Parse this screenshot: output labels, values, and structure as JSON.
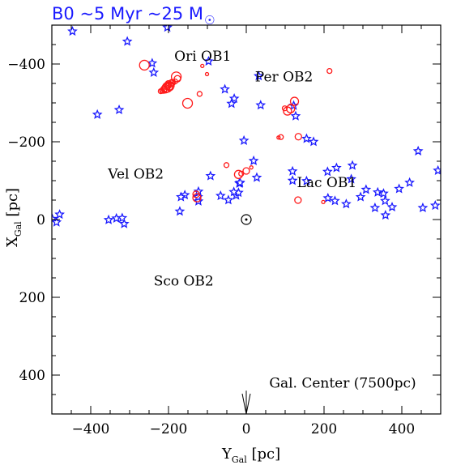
{
  "chart_data": {
    "type": "scatter",
    "title": {
      "main": "B0   ~5 Myr ~25 M",
      "sun_symbol": "☉"
    },
    "xlabel": {
      "main": "Y",
      "sub": "Gal",
      "unit": " [pc]"
    },
    "ylabel": {
      "main": "X",
      "sub": "Gal",
      "unit": " [pc]"
    },
    "xlim": [
      -500,
      500
    ],
    "ylim": [
      500,
      -500
    ],
    "xticks": [
      -400,
      -200,
      0,
      200,
      400
    ],
    "xtick_labels": [
      "−400",
      "−200",
      "0",
      "200",
      "400"
    ],
    "yticks": [
      -400,
      -200,
      0,
      200,
      400
    ],
    "ytick_labels": [
      "−400",
      "−200",
      "0",
      "200",
      "400"
    ],
    "grid": false,
    "colors": {
      "stars": "#1a1aff",
      "circles": "#ff1a1a",
      "title": "#1a1aff",
      "axes": "#000000"
    },
    "sun": {
      "x": 0,
      "y": 0
    },
    "annotations": [
      {
        "text": "Ori OB1",
        "x": -112,
        "y": -408
      },
      {
        "text": "Per OB2",
        "x": 97,
        "y": -355
      },
      {
        "text": "Vel OB2",
        "x": -284,
        "y": -105
      },
      {
        "text": "Lac OB1",
        "x": 207,
        "y": -83
      },
      {
        "text": "Sco OB2",
        "x": -161,
        "y": 170
      },
      {
        "text": "Gal. Center (7500pc)",
        "x": 248,
        "y": 432
      }
    ],
    "gal_center_arrow": {
      "x": 0,
      "y_from": 440,
      "y_to": 500
    },
    "series": [
      {
        "marker": "star",
        "x": [
          -447,
          -306,
          -203,
          -242,
          -238,
          -97,
          -55,
          -31,
          -38,
          -383,
          -327,
          32,
          37,
          122,
          127,
          155,
          173,
          273,
          232,
          209,
          270,
          155,
          308,
          294,
          210,
          228,
          257,
          331,
          358,
          442,
          493,
          512,
          393,
          420,
          338,
          353,
          357,
          375,
          454,
          486,
          -480,
          -499,
          -488,
          -314,
          -354,
          -334,
          -319,
          -171,
          -158,
          -168,
          -123,
          -124,
          -123,
          -66,
          -26,
          -46,
          -20,
          -32,
          -18,
          -17,
          -16,
          27,
          -92,
          119,
          119,
          19,
          -6
        ],
        "y": [
          -484,
          -458,
          -494,
          -402,
          -378,
          -407,
          -335,
          -311,
          -298,
          -270,
          -282,
          -369,
          -294,
          -293,
          -266,
          -208,
          -200,
          -139,
          -133,
          -123,
          -104,
          -99,
          -77,
          -58,
          -55,
          -48,
          -40,
          -30,
          -11,
          -176,
          -126,
          -162,
          -79,
          -95,
          -70,
          -67,
          -48,
          -32,
          -30,
          -36,
          -13,
          -2,
          7,
          11,
          1,
          -3,
          -4,
          -21,
          -63,
          -58,
          -47,
          -58,
          -72,
          -61,
          -62,
          -50,
          -69,
          -71,
          -93,
          -93,
          -95,
          -108,
          -112,
          -100,
          -124,
          -151,
          -203
        ]
      },
      {
        "marker": "circle",
        "x": [
          -262,
          -180,
          -177,
          -193,
          -196,
          -203,
          -208,
          -213,
          -220,
          -151,
          -120,
          -101,
          124,
          114,
          106,
          99,
          89,
          83,
          13,
          -210,
          -216,
          -203,
          -197,
          -200,
          -191,
          -183,
          -202,
          -129,
          -127,
          -51,
          -20,
          -13,
          0,
          133,
          198,
          214,
          134,
          -113
        ],
        "y": [
          -397,
          -367,
          -362,
          -350,
          -344,
          -340,
          -336,
          -333,
          -330,
          -299,
          -323,
          -374,
          -304,
          -285,
          -279,
          -286,
          -212,
          -211,
          -134,
          -335,
          -331,
          -342,
          -342,
          -349,
          -352,
          -355,
          -346,
          -65,
          -56,
          -140,
          -116,
          -118,
          -125,
          -50,
          -45,
          -382,
          -213,
          -395
        ],
        "r": [
          6,
          6,
          4,
          4,
          5,
          6,
          5,
          4,
          3,
          6,
          3,
          2,
          5,
          5,
          5,
          3,
          3,
          2,
          2,
          3,
          3,
          4,
          5,
          4,
          4,
          3,
          4,
          4,
          5,
          3,
          5,
          3,
          4,
          4,
          2,
          3,
          4,
          2
        ]
      }
    ]
  }
}
